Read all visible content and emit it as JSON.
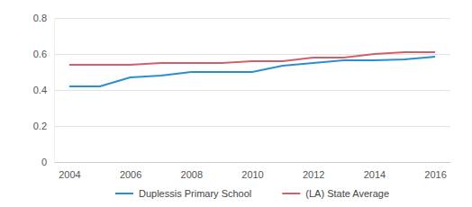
{
  "chart_data": {
    "type": "line",
    "x": [
      2004,
      2005,
      2006,
      2007,
      2008,
      2009,
      2010,
      2011,
      2012,
      2013,
      2014,
      2015,
      2016
    ],
    "series": [
      {
        "name": "Duplessis Primary School",
        "color": "#2a8fcf",
        "values": [
          0.42,
          0.42,
          0.47,
          0.48,
          0.5,
          0.5,
          0.5,
          0.535,
          0.55,
          0.565,
          0.565,
          0.57,
          0.585
        ]
      },
      {
        "name": "(LA) State Average",
        "color": "#d0606c",
        "values": [
          0.54,
          0.54,
          0.54,
          0.55,
          0.55,
          0.55,
          0.56,
          0.56,
          0.58,
          0.58,
          0.6,
          0.61,
          0.61
        ]
      }
    ],
    "xlim": [
      2003.5,
      2016.5
    ],
    "xticks": [
      2004,
      2006,
      2008,
      2010,
      2012,
      2014,
      2016
    ],
    "ylim": [
      0,
      0.8
    ],
    "yticks": [
      0,
      0.2,
      0.4,
      0.6,
      0.8
    ],
    "grid": true,
    "legend": "bottom"
  }
}
